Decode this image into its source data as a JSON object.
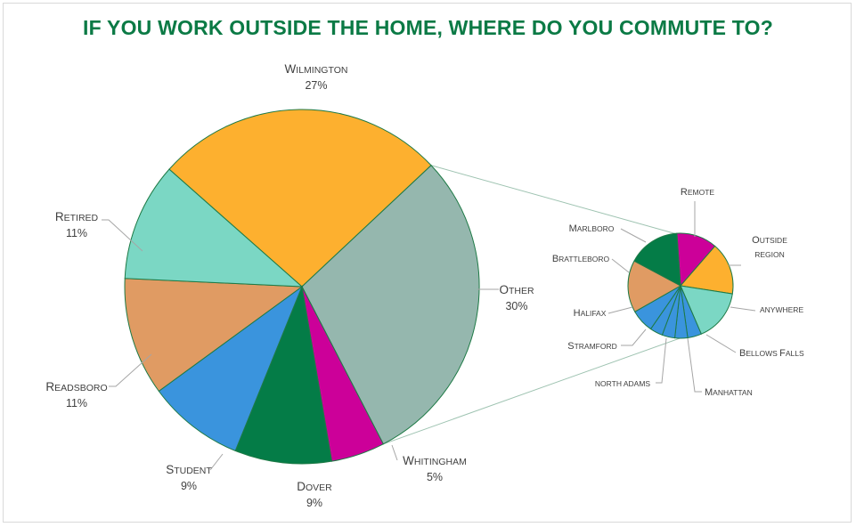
{
  "colors": {
    "title": "#0b7a45",
    "border": "#1e7a46",
    "leader": "#a6a6a6",
    "connector": "#9ec3b1"
  },
  "chart_data": {
    "type": "pie",
    "subtype": "pie-of-pie",
    "title": "IF YOU WORK OUTSIDE THE HOME, WHERE DO YOU COMMUTE TO?",
    "main": [
      {
        "name": "WILMINGTON",
        "label": "Wilmington",
        "pct": "27%",
        "value": 27,
        "color": "#fdb02f"
      },
      {
        "name": "OTHER",
        "label": "Other",
        "pct": "30%",
        "value": 30,
        "color": "#95b7ae"
      },
      {
        "name": "WHITINGHAM",
        "label": "Whitingham",
        "pct": "5%",
        "value": 5,
        "color": "#cc0099"
      },
      {
        "name": "DOVER",
        "label": "Dover",
        "pct": "9%",
        "value": 9,
        "color": "#047c47"
      },
      {
        "name": "STUDENT",
        "label": "Student",
        "pct": "9%",
        "value": 9,
        "color": "#3a94dd"
      },
      {
        "name": "READSBORO",
        "label": "Readsboro",
        "pct": "11%",
        "value": 11,
        "color": "#e09b63"
      },
      {
        "name": "RETIRED",
        "label": "Retired",
        "pct": "11%",
        "value": 11,
        "color": "#7bd7c4"
      }
    ],
    "secondary": [
      {
        "name": "REMOTE",
        "label": "Remote",
        "value": 3.5,
        "color": "#cc0099"
      },
      {
        "name": "OUTSIDE REGION",
        "label": "Outside region",
        "value": 4.5,
        "color": "#fdb02f"
      },
      {
        "name": "ANYWHERE",
        "label": "anywhere",
        "value": 4.5,
        "color": "#7bd7c4"
      },
      {
        "name": "BELLOWS FALLS",
        "label": "Bellows Falls",
        "value": 1.2,
        "color": "#3a94dd"
      },
      {
        "name": "MANHATTAN",
        "label": "Manhattan",
        "value": 1.1,
        "color": "#3a94dd"
      },
      {
        "name": "NORTH ADAMS",
        "label": "north adams",
        "value": 1.1,
        "color": "#3a94dd"
      },
      {
        "name": "STAMFORD",
        "label": "Stramford",
        "value": 1.1,
        "color": "#3a94dd"
      },
      {
        "name": "HALIFAX",
        "label": "Halifax",
        "value": 2.0,
        "color": "#3a94dd"
      },
      {
        "name": "BRATTLEBORO",
        "label": "Brattleboro",
        "value": 4.5,
        "color": "#e09b63"
      },
      {
        "name": "MARLBORO",
        "label": "Marlboro",
        "value": 4.5,
        "color": "#047c47"
      }
    ]
  }
}
